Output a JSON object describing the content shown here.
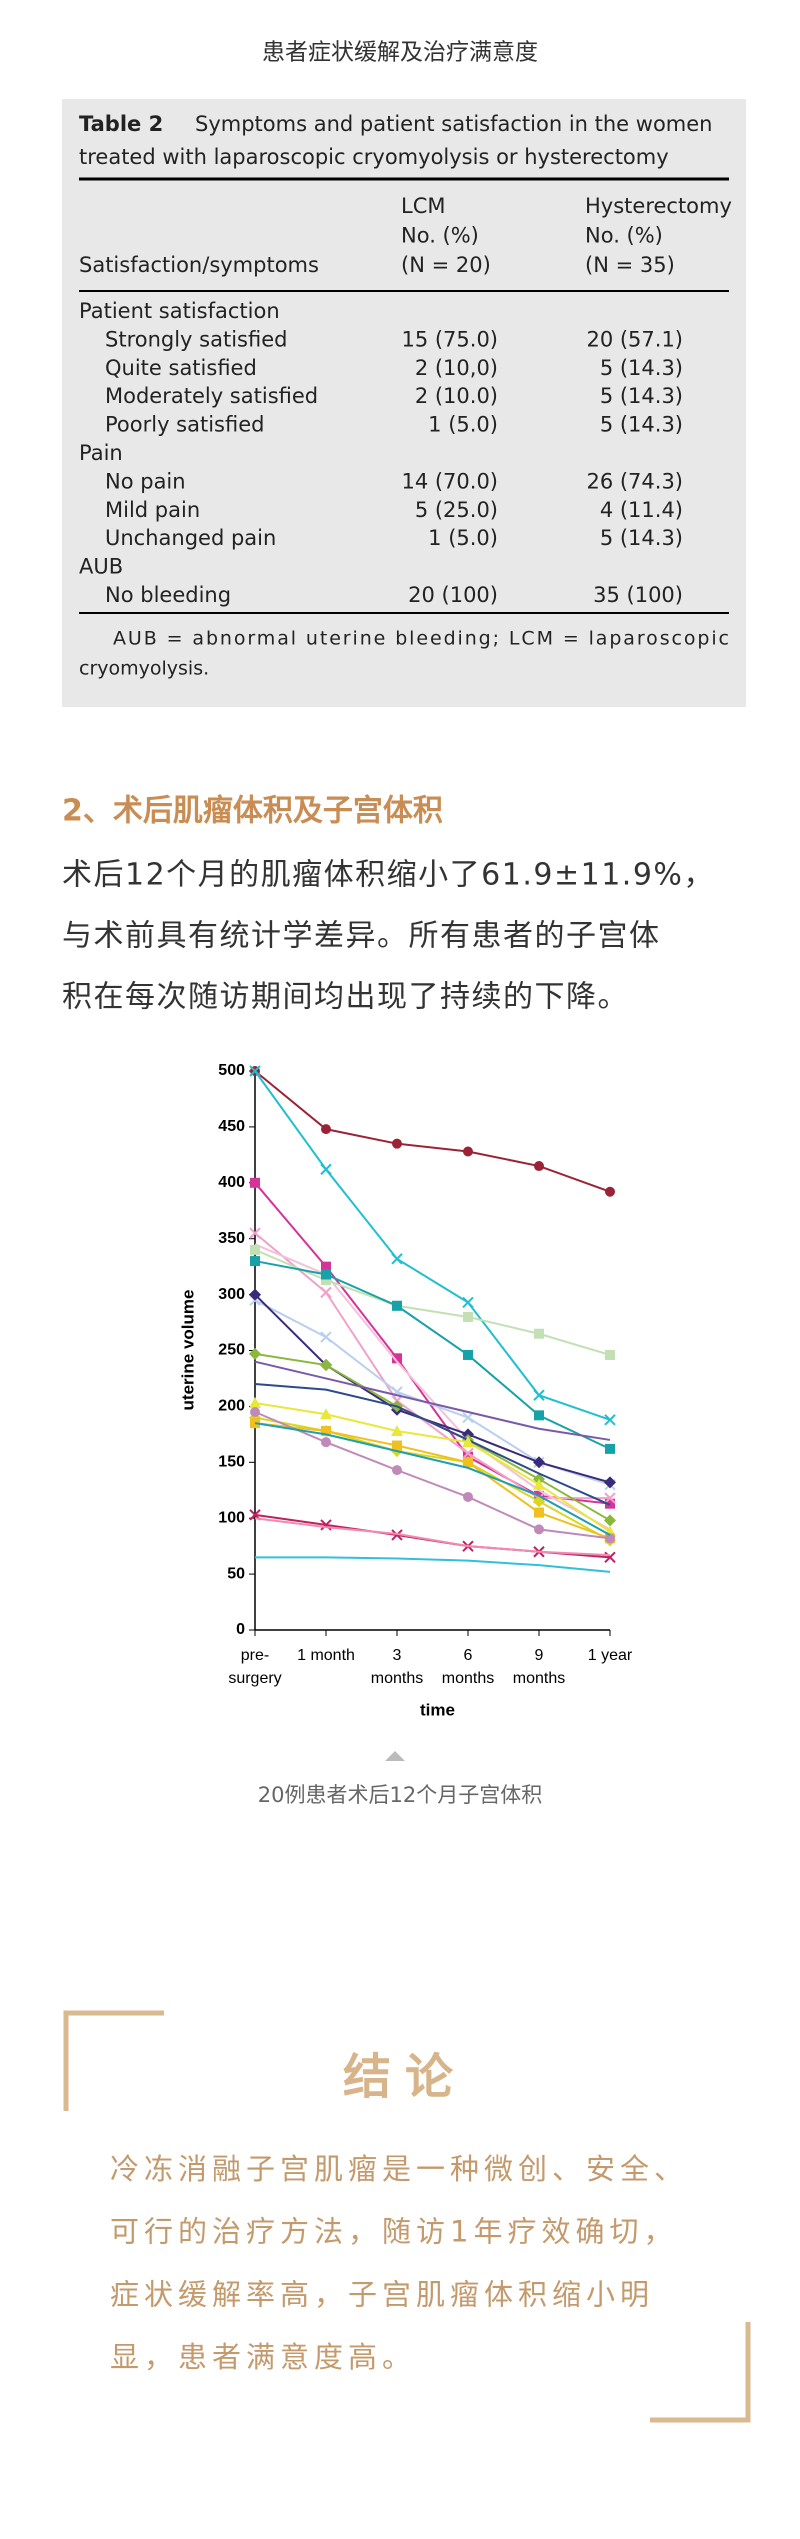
{
  "header": {
    "title": "患者症状缓解及治疗满意度"
  },
  "table": {
    "label": "Table 2",
    "caption_lines": [
      "Symptoms and patient satisfaction in the women",
      "treated with laparoscopic cryomyolysis or hysterectomy"
    ],
    "columns": [
      [
        "Satisfaction/symptoms"
      ],
      [
        "LCM",
        "No. (%)",
        "(N = 20)"
      ],
      [
        "Hysterectomy",
        "No. (%)",
        "(N = 35)"
      ]
    ],
    "sections": [
      {
        "title": "Patient satisfaction",
        "rows": [
          [
            "Strongly satisfied",
            "15 (75.0)",
            "20 (57.1)"
          ],
          [
            "Quite satisfied",
            "2 (10,0)",
            "5 (14.3)"
          ],
          [
            "Moderately satisfied",
            "2 (10.0)",
            "5 (14.3)"
          ],
          [
            "Poorly satisfied",
            "1 (5.0)",
            "5 (14.3)"
          ]
        ]
      },
      {
        "title": "Pain",
        "rows": [
          [
            "No pain",
            "14 (70.0)",
            "26 (74.3)"
          ],
          [
            "Mild pain",
            "5 (25.0)",
            "4 (11.4)"
          ],
          [
            "Unchanged pain",
            "1 (5.0)",
            "5 (14.3)"
          ]
        ]
      },
      {
        "title": "AUB",
        "rows": [
          [
            "No bleeding",
            "20 (100)",
            "35 (100)"
          ]
        ]
      }
    ],
    "footnote_lines": [
      "AUB = abnormal uterine bleeding; LCM = laparoscopic",
      "cryomyolysis."
    ]
  },
  "section": {
    "heading": "2、术后肌瘤体积及子宫体积",
    "lines": [
      "术后12个月的肌瘤体积缩小了61.9±11.9%，",
      "与术前具有统计学差异。所有患者的子宫体",
      "积在每次随访期间均出现了持续的下降。"
    ]
  },
  "chart_data": {
    "type": "line",
    "ylabel": "uterine volume",
    "xlabel": "time",
    "categories": [
      [
        "pre-",
        "surgery"
      ],
      [
        "1 month"
      ],
      [
        "3",
        "months"
      ],
      [
        "6",
        "months"
      ],
      [
        "9",
        "months"
      ],
      [
        "1 year"
      ]
    ],
    "ylim": [
      0,
      500
    ],
    "yticks": [
      0,
      50,
      100,
      150,
      200,
      250,
      300,
      350,
      400,
      450,
      500
    ],
    "series": [
      {
        "color": "#9b2335",
        "marker": "circle",
        "values": [
          500,
          448,
          435,
          428,
          415,
          392
        ]
      },
      {
        "color": "#1fbfcf",
        "marker": "x",
        "values": [
          500,
          412,
          332,
          293,
          210,
          188
        ]
      },
      {
        "color": "#d6339a",
        "marker": "square",
        "values": [
          400,
          325,
          243,
          155,
          120,
          113
        ]
      },
      {
        "color": "#f2a0c8",
        "marker": "x",
        "values": [
          355,
          302,
          205,
          158,
          118,
          118
        ]
      },
      {
        "color": "#f5c0da",
        "values": [
          345,
          318,
          240,
          170,
          125,
          90
        ]
      },
      {
        "color": "#c2e0b4",
        "marker": "square",
        "values": [
          340,
          313,
          290,
          280,
          265,
          246
        ]
      },
      {
        "color": "#17a2a8",
        "marker": "square",
        "values": [
          330,
          318,
          290,
          246,
          192,
          162
        ]
      },
      {
        "color": "#b8d0ee",
        "marker": "x",
        "values": [
          295,
          262,
          213,
          190,
          150,
          130
        ]
      },
      {
        "color": "#3a2a7a",
        "marker": "diamond",
        "values": [
          300,
          237,
          197,
          175,
          150,
          132
        ]
      },
      {
        "color": "#8ab83a",
        "marker": "diamond",
        "values": [
          247,
          237,
          200,
          170,
          135,
          98
        ]
      },
      {
        "color": "#7a5aa8",
        "values": [
          240,
          225,
          210,
          195,
          180,
          170
        ]
      },
      {
        "color": "#2c4a8c",
        "values": [
          220,
          215,
          200,
          170,
          140,
          112
        ]
      },
      {
        "color": "#e8e83a",
        "marker": "triangle",
        "values": [
          203,
          193,
          178,
          168,
          130,
          88
        ]
      },
      {
        "color": "#d8d820",
        "marker": "diamond",
        "values": [
          190,
          178,
          160,
          150,
          115,
          80
        ]
      },
      {
        "color": "#f0c020",
        "marker": "square",
        "values": [
          185,
          178,
          165,
          150,
          105,
          82
        ]
      },
      {
        "color": "#c08ab8",
        "marker": "circle",
        "values": [
          195,
          168,
          143,
          119,
          90,
          82
        ]
      },
      {
        "color": "#1f9faf",
        "values": [
          185,
          175,
          160,
          145,
          120,
          85
        ]
      },
      {
        "color": "#c02060",
        "marker": "x",
        "values": [
          103,
          94,
          85,
          75,
          70,
          65
        ]
      },
      {
        "color": "#f08ab0",
        "values": [
          100,
          92,
          86,
          75,
          70,
          67
        ]
      },
      {
        "color": "#30c0d8",
        "values": [
          65,
          65,
          64,
          62,
          58,
          52
        ]
      }
    ]
  },
  "figure_caption": "20例患者术后12个月子宫体积",
  "conclusion": {
    "title": "结论",
    "lines": [
      "冷冻消融子宫肌瘤是一种微创、安全、",
      "可行的治疗方法，随访1年疗效确切，",
      "症状缓解率高，子宫肌瘤体积缩小明",
      "显，患者满意度高。"
    ]
  }
}
